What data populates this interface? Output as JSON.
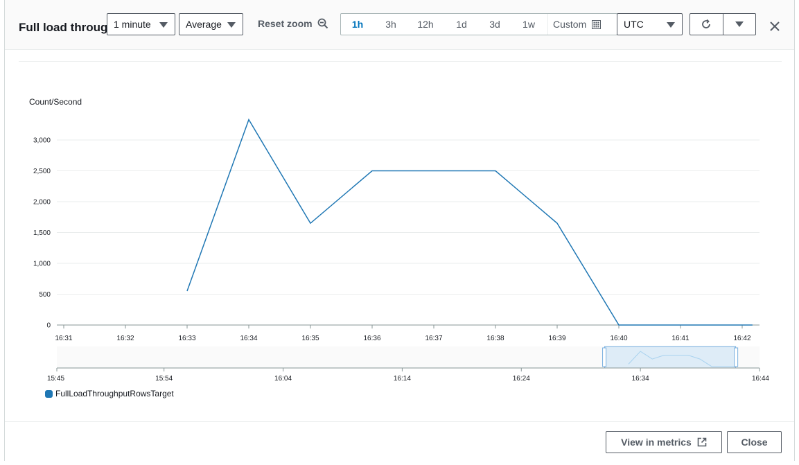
{
  "modal": {
    "title": "Full load throughput rows target",
    "period": {
      "selected": "1 minute"
    },
    "statistic": {
      "selected": "Average"
    },
    "reset_zoom": "Reset zoom",
    "time_ranges": [
      "1h",
      "3h",
      "12h",
      "1d",
      "3d",
      "1w"
    ],
    "active_range": "1h",
    "custom": "Custom",
    "timezone": {
      "selected": "UTC"
    },
    "footer": {
      "view_in_metrics": "View in metrics",
      "close": "Close"
    }
  },
  "colors": {
    "series": "#1f77b4",
    "accent": "#0073bb",
    "grid": "#eaeded",
    "mini": "#a9d3ef"
  },
  "chart_data": {
    "type": "line",
    "ylabel": "Count/Second",
    "x": [
      "16:33",
      "16:34",
      "16:35",
      "16:36",
      "16:37",
      "16:38",
      "16:39",
      "16:40",
      "16:41",
      "16:42",
      "16:42:10"
    ],
    "xticks": [
      "16:31",
      "16:32",
      "16:33",
      "16:34",
      "16:35",
      "16:36",
      "16:37",
      "16:38",
      "16:39",
      "16:40",
      "16:41",
      "16:42"
    ],
    "series": [
      {
        "name": "FullLoadThroughputRowsTarget",
        "values": [
          550,
          3330,
          1650,
          2500,
          2500,
          2500,
          1650,
          0,
          0,
          0,
          0
        ]
      }
    ],
    "ylim": [
      0,
      3300
    ],
    "yticks": [
      0,
      500,
      1000,
      1500,
      2000,
      2500,
      3000
    ],
    "yticklabels": [
      "0",
      "500",
      "1,000",
      "1,500",
      "2,000",
      "2,500",
      "3,000"
    ],
    "grid": true,
    "legend": "bottom-left",
    "navigator": {
      "xticks": [
        "15:45",
        "15:54",
        "16:04",
        "16:14",
        "16:24",
        "16:34",
        "16:44"
      ],
      "selection": [
        "16:31",
        "16:42"
      ]
    }
  }
}
